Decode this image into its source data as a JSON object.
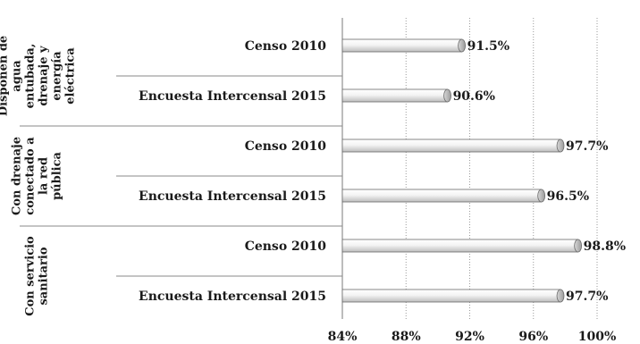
{
  "chart_data": {
    "type": "bar",
    "orientation": "horizontal",
    "groups": [
      {
        "label_lines": [
          "Disponen de",
          "agua",
          "entubada,",
          "drenaje y",
          "energía",
          "eléctrica"
        ],
        "categories": [
          "Censo 2010",
          "Encuesta Intercensal 2015"
        ],
        "values": [
          91.5,
          90.6
        ],
        "value_labels": [
          "91.5%",
          "90.6%"
        ]
      },
      {
        "label_lines": [
          "Con drenaje",
          "conectado a",
          "la red",
          "pública"
        ],
        "categories": [
          "Censo 2010",
          "Encuesta Intercensal 2015"
        ],
        "values": [
          97.7,
          96.5
        ],
        "value_labels": [
          "97.7%",
          "96.5%"
        ]
      },
      {
        "label_lines": [
          "Con servicio",
          "sanitario"
        ],
        "categories": [
          "Censo 2010",
          "Encuesta Intercensal 2015"
        ],
        "values": [
          98.8,
          97.7
        ],
        "value_labels": [
          "98.8%",
          "97.7%"
        ]
      }
    ],
    "xlim": [
      84,
      100
    ],
    "xticks": [
      84,
      88,
      92,
      96,
      100
    ],
    "xtick_labels": [
      "84%",
      "88%",
      "92%",
      "96%",
      "100%"
    ],
    "grid": true,
    "bar_color": "#f2f2f2",
    "bar_shade_color": "#b0b0b0",
    "outline_color": "#6a6a6a"
  }
}
